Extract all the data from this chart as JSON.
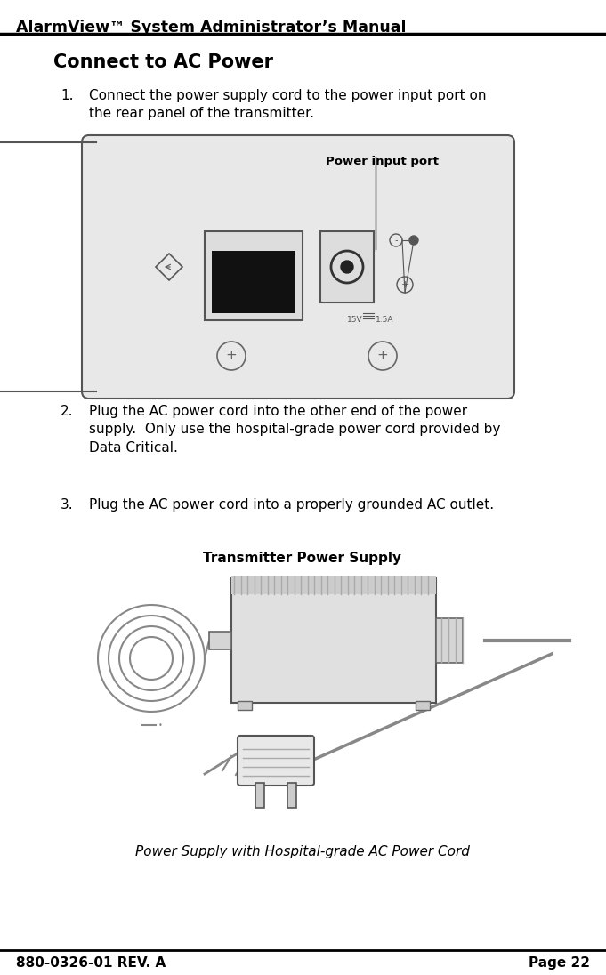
{
  "bg_color": "#ffffff",
  "header_text": "AlarmView™ System Administrator’s Manual",
  "header_font_size": 12.5,
  "footer_left": "880-0326-01 REV. A",
  "footer_right": "Page 22",
  "footer_font_size": 11,
  "section_title": "Connect to AC Power",
  "section_title_font_size": 15,
  "body_font_size": 11,
  "item1_text": "Connect the power supply cord to the power input port on\nthe rear panel of the transmitter.",
  "item2_text": "Plug the AC power cord into the other end of the power\nsupply.  Only use the hospital-grade power cord provided by\nData Critical.",
  "item3_text": "Plug the AC power cord into a properly grounded AC outlet.",
  "caption_text": "Power Supply with Hospital-grade AC Power Cord",
  "text_color": "#000000",
  "line_color": "#000000",
  "panel_label": "Power input port",
  "supply_label": "Transmitter Power Supply"
}
